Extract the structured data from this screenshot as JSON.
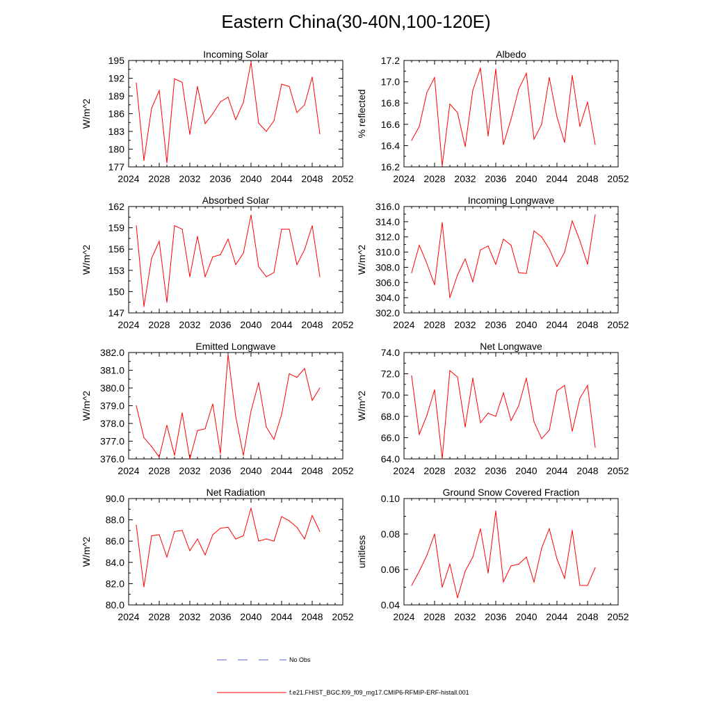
{
  "figure": {
    "title": "Eastern China(30-40N,100-120E)",
    "line_color": "#ff0000",
    "obs_color": "#5566cc"
  },
  "legend": {
    "obs_label": "No Obs",
    "model_label": "f.e21.FHIST_BGC.f09_f09_mg17.CMIP6-RFMIP-ERF-histall.001"
  },
  "chart_data": [
    {
      "type": "line",
      "title": "Incoming Solar",
      "ylabel": "W/m^2",
      "xlim": [
        2024,
        2052
      ],
      "ylim": [
        177,
        195
      ],
      "xticks": [
        "2024",
        "2028",
        "2032",
        "2036",
        "2040",
        "2044",
        "2048",
        "2052"
      ],
      "yticks": [
        "177",
        "180",
        "183",
        "186",
        "189",
        "192",
        "195"
      ],
      "x": [
        2025,
        2026,
        2027,
        2028,
        2029,
        2030,
        2031,
        2032,
        2033,
        2034,
        2035,
        2036,
        2037,
        2038,
        2039,
        2040,
        2041,
        2042,
        2043,
        2044,
        2045,
        2046,
        2047,
        2048,
        2049
      ],
      "values": [
        191.2,
        178.1,
        186.9,
        189.9,
        177.7,
        191.9,
        191.3,
        182.5,
        190.6,
        184.3,
        186.0,
        188.0,
        188.8,
        185.0,
        187.9,
        194.7,
        184.4,
        183.0,
        184.8,
        191.0,
        190.6,
        186.2,
        187.5,
        192.2,
        182.6
      ]
    },
    {
      "type": "line",
      "title": "Albedo",
      "ylabel": "% reflected",
      "xlim": [
        2024,
        2052
      ],
      "ylim": [
        16.2,
        17.2
      ],
      "xticks": [
        "2024",
        "2028",
        "2032",
        "2036",
        "2040",
        "2044",
        "2048",
        "2052"
      ],
      "yticks": [
        "16.2",
        "16.4",
        "16.6",
        "16.8",
        "17.0",
        "17.2"
      ],
      "x": [
        2025,
        2026,
        2027,
        2028,
        2029,
        2030,
        2031,
        2032,
        2033,
        2034,
        2035,
        2036,
        2037,
        2038,
        2039,
        2040,
        2041,
        2042,
        2043,
        2044,
        2045,
        2046,
        2047,
        2048,
        2049
      ],
      "values": [
        16.45,
        16.58,
        16.9,
        17.04,
        16.21,
        16.79,
        16.71,
        16.39,
        16.92,
        17.13,
        16.49,
        17.12,
        16.41,
        16.65,
        16.93,
        17.08,
        16.46,
        16.6,
        17.04,
        16.67,
        16.43,
        17.06,
        16.58,
        16.81,
        16.41
      ]
    },
    {
      "type": "line",
      "title": "Absorbed Solar",
      "ylabel": "W/m^2",
      "xlim": [
        2024,
        2052
      ],
      "ylim": [
        147,
        162
      ],
      "xticks": [
        "2024",
        "2028",
        "2032",
        "2036",
        "2040",
        "2044",
        "2048",
        "2052"
      ],
      "yticks": [
        "147",
        "150",
        "153",
        "156",
        "159",
        "162"
      ],
      "x": [
        2025,
        2026,
        2027,
        2028,
        2029,
        2030,
        2031,
        2032,
        2033,
        2034,
        2035,
        2036,
        2037,
        2038,
        2039,
        2040,
        2041,
        2042,
        2043,
        2044,
        2045,
        2046,
        2047,
        2048,
        2049
      ],
      "values": [
        159.3,
        147.9,
        154.7,
        157.1,
        148.5,
        159.3,
        158.8,
        152.1,
        157.8,
        152.1,
        154.9,
        155.2,
        157.4,
        153.8,
        155.4,
        160.8,
        153.5,
        152.1,
        152.7,
        158.8,
        158.8,
        153.8,
        155.9,
        159.3,
        152.1
      ]
    },
    {
      "type": "line",
      "title": "Incoming Longwave",
      "ylabel": "W/m^2",
      "xlim": [
        2024,
        2052
      ],
      "ylim": [
        302,
        316
      ],
      "xticks": [
        "2024",
        "2028",
        "2032",
        "2036",
        "2040",
        "2044",
        "2048",
        "2052"
      ],
      "yticks": [
        "302.0",
        "304.0",
        "306.0",
        "308.0",
        "310.0",
        "312.0",
        "314.0",
        "316.0"
      ],
      "x": [
        2025,
        2026,
        2027,
        2028,
        2029,
        2030,
        2031,
        2032,
        2033,
        2034,
        2035,
        2036,
        2037,
        2038,
        2039,
        2040,
        2041,
        2042,
        2043,
        2044,
        2045,
        2046,
        2047,
        2048,
        2049
      ],
      "values": [
        307.3,
        310.9,
        308.5,
        305.7,
        313.9,
        304.0,
        307.0,
        309.1,
        306.1,
        310.3,
        310.8,
        308.4,
        311.7,
        310.9,
        307.3,
        307.2,
        312.8,
        312.0,
        310.4,
        308.1,
        310.0,
        314.1,
        311.5,
        308.4,
        314.9
      ]
    },
    {
      "type": "line",
      "title": "Emitted Longwave",
      "ylabel": "W/m^2",
      "xlim": [
        2024,
        2052
      ],
      "ylim": [
        376,
        382
      ],
      "xticks": [
        "2024",
        "2028",
        "2032",
        "2036",
        "2040",
        "2044",
        "2048",
        "2052"
      ],
      "yticks": [
        "376.0",
        "377.0",
        "378.0",
        "379.0",
        "380.0",
        "381.0",
        "382.0"
      ],
      "x": [
        2025,
        2026,
        2027,
        2028,
        2029,
        2030,
        2031,
        2032,
        2033,
        2034,
        2035,
        2036,
        2037,
        2038,
        2039,
        2040,
        2041,
        2042,
        2043,
        2044,
        2045,
        2046,
        2047,
        2048,
        2049
      ],
      "values": [
        379.0,
        377.2,
        376.7,
        376.1,
        377.9,
        376.2,
        378.6,
        376.0,
        377.6,
        377.7,
        379.1,
        376.3,
        381.9,
        378.4,
        376.2,
        378.7,
        380.3,
        377.8,
        377.1,
        378.5,
        380.8,
        380.6,
        381.1,
        379.3,
        380.0
      ]
    },
    {
      "type": "line",
      "title": "Net Longwave",
      "ylabel": "W/m^2",
      "xlim": [
        2024,
        2052
      ],
      "ylim": [
        64,
        74
      ],
      "xticks": [
        "2024",
        "2028",
        "2032",
        "2036",
        "2040",
        "2044",
        "2048",
        "2052"
      ],
      "yticks": [
        "64.0",
        "66.0",
        "68.0",
        "70.0",
        "72.0",
        "74.0"
      ],
      "x": [
        2025,
        2026,
        2027,
        2028,
        2029,
        2030,
        2031,
        2032,
        2033,
        2034,
        2035,
        2036,
        2037,
        2038,
        2039,
        2040,
        2041,
        2042,
        2043,
        2044,
        2045,
        2046,
        2047,
        2048,
        2049
      ],
      "values": [
        71.8,
        66.3,
        68.1,
        70.5,
        64.0,
        72.3,
        71.7,
        67.0,
        71.6,
        67.4,
        68.3,
        68.0,
        70.2,
        67.6,
        69.0,
        71.6,
        67.5,
        65.9,
        66.7,
        70.4,
        70.9,
        66.6,
        69.7,
        70.9,
        65.1
      ]
    },
    {
      "type": "line",
      "title": "Net Radiation",
      "ylabel": "W/m^2",
      "xlim": [
        2024,
        2052
      ],
      "ylim": [
        80,
        90
      ],
      "xticks": [
        "2024",
        "2028",
        "2032",
        "2036",
        "2040",
        "2044",
        "2048",
        "2052"
      ],
      "yticks": [
        "80.0",
        "82.0",
        "84.0",
        "86.0",
        "88.0",
        "90.0"
      ],
      "x": [
        2025,
        2026,
        2027,
        2028,
        2029,
        2030,
        2031,
        2032,
        2033,
        2034,
        2035,
        2036,
        2037,
        2038,
        2039,
        2040,
        2041,
        2042,
        2043,
        2044,
        2045,
        2046,
        2047,
        2048,
        2049
      ],
      "values": [
        87.5,
        81.7,
        86.5,
        86.6,
        84.5,
        86.9,
        87.0,
        85.1,
        86.2,
        84.7,
        86.6,
        87.2,
        87.3,
        86.2,
        86.5,
        89.1,
        86.0,
        86.2,
        86.0,
        88.3,
        87.9,
        87.3,
        86.2,
        88.4,
        86.9
      ]
    },
    {
      "type": "line",
      "title": "Ground Snow Covered Fraction",
      "ylabel": "unitless",
      "xlim": [
        2024,
        2052
      ],
      "ylim": [
        0.04,
        0.1
      ],
      "xticks": [
        "2024",
        "2028",
        "2032",
        "2036",
        "2040",
        "2044",
        "2048",
        "2052"
      ],
      "yticks": [
        "0.04",
        "0.06",
        "0.08",
        "0.10"
      ],
      "x": [
        2025,
        2026,
        2027,
        2028,
        2029,
        2030,
        2031,
        2032,
        2033,
        2034,
        2035,
        2036,
        2037,
        2038,
        2039,
        2040,
        2041,
        2042,
        2043,
        2044,
        2045,
        2046,
        2047,
        2048,
        2049
      ],
      "values": [
        0.051,
        0.059,
        0.068,
        0.08,
        0.05,
        0.063,
        0.044,
        0.059,
        0.067,
        0.083,
        0.058,
        0.093,
        0.053,
        0.062,
        0.063,
        0.067,
        0.053,
        0.072,
        0.083,
        0.066,
        0.055,
        0.082,
        0.051,
        0.051,
        0.061
      ]
    }
  ]
}
